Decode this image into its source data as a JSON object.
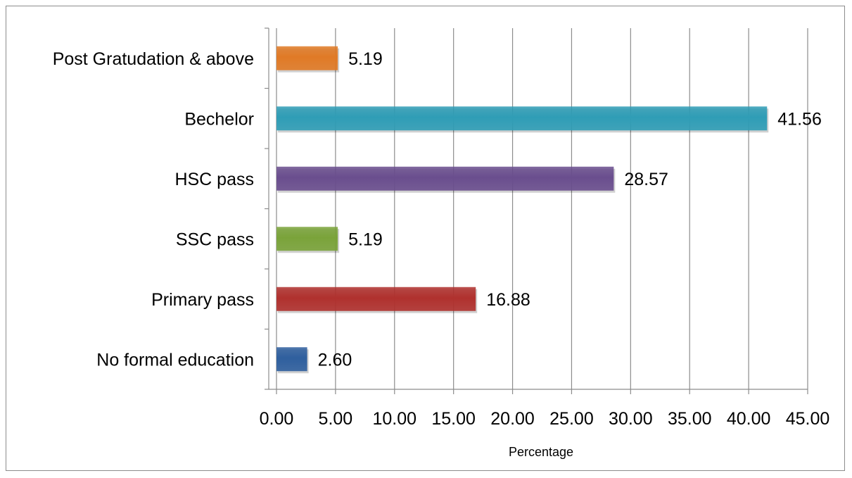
{
  "chart_data": {
    "type": "bar",
    "orientation": "horizontal",
    "title": "",
    "xlabel": "Percentage",
    "ylabel": "",
    "xlim": [
      0,
      45
    ],
    "x_ticks": [
      "0.00",
      "5.00",
      "10.00",
      "15.00",
      "20.00",
      "25.00",
      "30.00",
      "35.00",
      "40.00",
      "45.00"
    ],
    "grid": "vertical",
    "legend": "none",
    "bars": [
      {
        "category": "No formal education",
        "value": 2.6,
        "label": "2.60",
        "color": "#2f5f9e"
      },
      {
        "category": "Primary pass",
        "value": 16.88,
        "label": "16.88",
        "color": "#b0312e"
      },
      {
        "category": "SSC pass",
        "value": 5.19,
        "label": "5.19",
        "color": "#7aa33a"
      },
      {
        "category": "HSC pass",
        "value": 28.57,
        "label": "28.57",
        "color": "#6a4e8e"
      },
      {
        "category": "Bechelor",
        "value": 41.56,
        "label": "41.56",
        "color": "#2f9db6"
      },
      {
        "category": "Post Gratudation & above",
        "value": 5.19,
        "label": "5.19",
        "color": "#e07a26"
      }
    ]
  }
}
